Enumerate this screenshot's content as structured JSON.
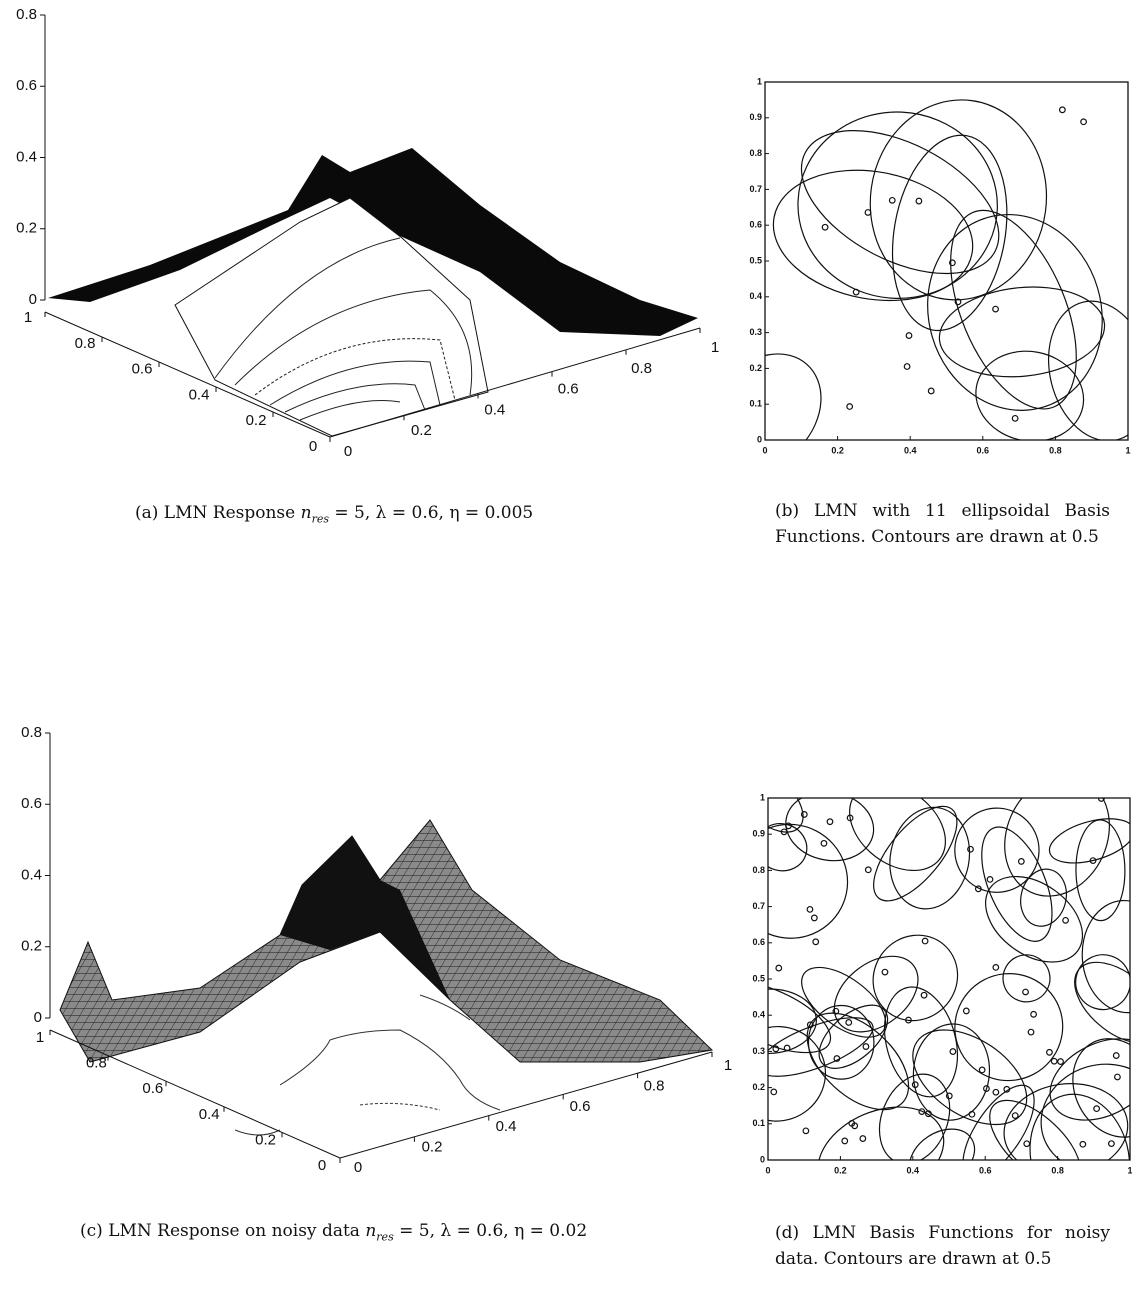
{
  "panels": [
    {
      "caption": {
        "lead": "(a) LMN Response",
        "var": "n",
        "sub": "res",
        "rest": "= 5, λ = 0.6, η = 0.005"
      },
      "z_ticks": [
        0,
        0.2,
        0.4,
        0.6,
        0.8
      ],
      "x_ticks": [
        0,
        0.2,
        0.4,
        0.6,
        0.8,
        1
      ],
      "y_ticks": [
        0,
        0.2,
        0.4,
        0.6,
        0.8,
        1
      ]
    },
    {
      "caption": {
        "lead": "(b) LMN with 11 ellipsoidal Basis Functions. Contours are drawn at 0.5"
      },
      "y_ticks": [
        0,
        0.1,
        0.2,
        0.3,
        0.4,
        0.5,
        0.6,
        0.7,
        0.8,
        0.9,
        1
      ],
      "x_ticks": [
        0,
        0.2,
        0.4,
        0.6,
        0.8,
        1
      ]
    },
    {
      "caption": {
        "lead": "(c) LMN Response on noisy data",
        "var": "n",
        "sub": "res",
        "rest": "= 5, λ = 0.6, η = 0.02"
      },
      "z_ticks": [
        0,
        0.2,
        0.4,
        0.6,
        0.8
      ],
      "x_ticks": [
        0,
        0.2,
        0.4,
        0.6,
        0.8,
        1
      ],
      "y_ticks": [
        0,
        0.2,
        0.4,
        0.6,
        0.8,
        1
      ]
    },
    {
      "caption": {
        "lead": "(d) LMN Basis Functions for noisy data. Contours are drawn at 0.5"
      },
      "y_ticks": [
        0,
        0.1,
        0.2,
        0.3,
        0.4,
        0.5,
        0.6,
        0.7,
        0.8,
        0.9,
        1
      ],
      "x_ticks": [
        0,
        0.2,
        0.4,
        0.6,
        0.8,
        1
      ]
    }
  ]
}
